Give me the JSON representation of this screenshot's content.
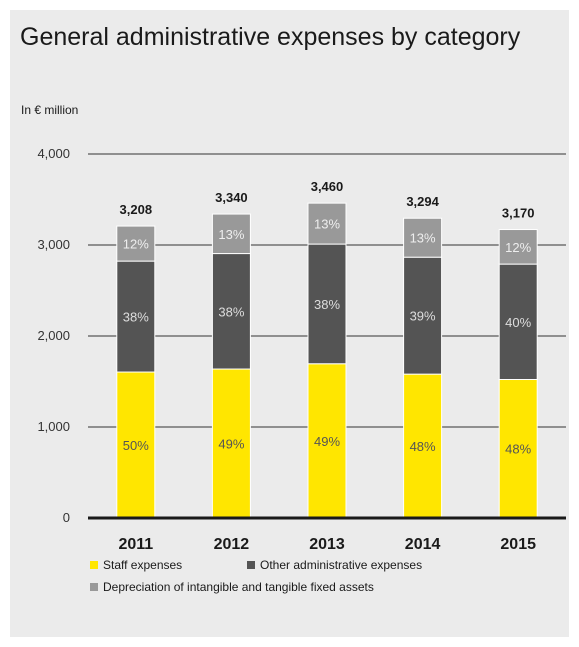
{
  "chart_data": {
    "type": "bar",
    "stacked": true,
    "title": "General administrative expenses by category",
    "unit": "In € million",
    "categories": [
      "2011",
      "2012",
      "2013",
      "2014",
      "2015"
    ],
    "totals": [
      3208,
      3340,
      3460,
      3294,
      3170
    ],
    "total_labels": [
      "3,208",
      "3,340",
      "3,460",
      "3,294",
      "3,170"
    ],
    "ylim": [
      0,
      4000
    ],
    "yticks": [
      0,
      1000,
      2000,
      3000,
      4000
    ],
    "ytick_labels": [
      "0",
      "1,000",
      "2,000",
      "3,000",
      "4,000"
    ],
    "grid": true,
    "legend_position": "bottom",
    "series": [
      {
        "name": "Staff expenses",
        "color": "#ffe600",
        "label_color": "#555555",
        "values": [
          1604,
          1637,
          1695,
          1581,
          1522
        ],
        "labels": [
          "50%",
          "49%",
          "49%",
          "48%",
          "48%"
        ]
      },
      {
        "name": "Other administrative expenses",
        "color": "#545454",
        "label_color": "#dddddd",
        "values": [
          1219,
          1269,
          1315,
          1285,
          1268
        ],
        "labels": [
          "38%",
          "38%",
          "38%",
          "39%",
          "40%"
        ]
      },
      {
        "name": "Depreciation of intangible and tangible fixed assets",
        "color": "#999999",
        "label_color": "#eeeeee",
        "values": [
          385,
          434,
          450,
          428,
          380
        ],
        "labels": [
          "12%",
          "13%",
          "13%",
          "13%",
          "12%"
        ]
      }
    ]
  }
}
